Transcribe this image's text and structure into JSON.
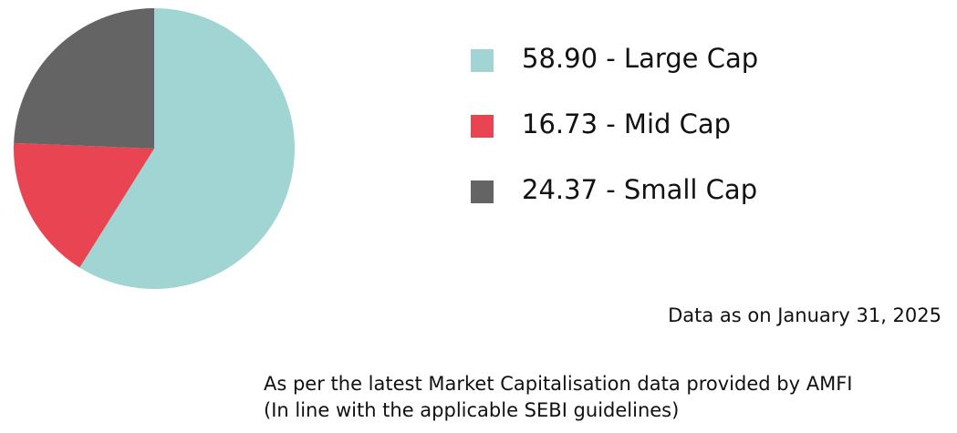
{
  "chart_data": {
    "type": "pie",
    "categories": [
      "58.90 - Large Cap",
      "16.73 - Mid Cap",
      "24.37 - Small Cap"
    ],
    "values": [
      58.9,
      16.73,
      24.37
    ],
    "colors": [
      "#a0d5d4",
      "#e84452",
      "#646464"
    ],
    "annotations": [
      "Data as on January 31, 2025",
      "As per the latest Market Capitalisation data provided by AMFI",
      "(In line with the applicable SEBI guidelines)"
    ]
  }
}
